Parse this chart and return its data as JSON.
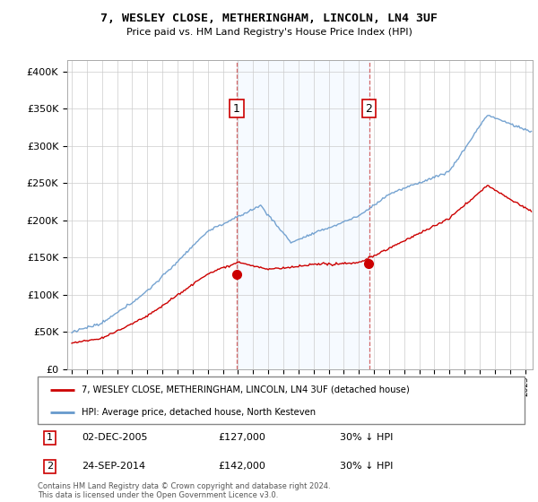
{
  "title": "7, WESLEY CLOSE, METHERINGHAM, LINCOLN, LN4 3UF",
  "subtitle": "Price paid vs. HM Land Registry's House Price Index (HPI)",
  "legend_line1": "7, WESLEY CLOSE, METHERINGHAM, LINCOLN, LN4 3UF (detached house)",
  "legend_line2": "HPI: Average price, detached house, North Kesteven",
  "annotation1_date": "02-DEC-2005",
  "annotation1_price": "£127,000",
  "annotation1_hpi": "30% ↓ HPI",
  "annotation2_date": "24-SEP-2014",
  "annotation2_price": "£142,000",
  "annotation2_hpi": "30% ↓ HPI",
  "red_color": "#cc0000",
  "blue_color": "#6699cc",
  "shade_color": "#ddeeff",
  "background_color": "#ffffff",
  "sale1_year": 2005.92,
  "sale1_price": 127000,
  "sale2_year": 2014.67,
  "sale2_price": 142000,
  "footnote": "Contains HM Land Registry data © Crown copyright and database right 2024.\nThis data is licensed under the Open Government Licence v3.0."
}
